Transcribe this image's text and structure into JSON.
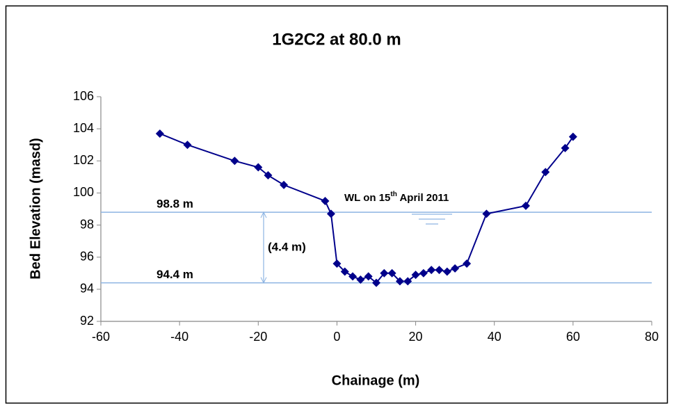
{
  "chart_data": {
    "type": "line",
    "title": "1G2C2 at 80.0 m",
    "x_label": "Chainage (m)",
    "y_label": "Bed Elevation (masd)",
    "xlim": [
      -60,
      80
    ],
    "xticks": [
      -60,
      -40,
      -20,
      0,
      20,
      40,
      60,
      80
    ],
    "ylim": [
      92,
      106
    ],
    "yticks": [
      92,
      94,
      96,
      98,
      100,
      102,
      104,
      106
    ],
    "grid": false,
    "series": [
      {
        "color": "#00008b",
        "x": [
          -45,
          -38,
          -26,
          -20,
          -17.5,
          -13.5,
          -3,
          -1.5,
          0,
          2,
          4,
          6,
          8,
          10,
          12,
          14,
          16,
          18,
          20,
          22,
          24,
          26,
          28,
          30,
          33,
          38,
          48,
          53,
          58,
          60
        ],
        "values": [
          103.7,
          103.0,
          102.0,
          101.6,
          101.1,
          100.5,
          99.5,
          98.7,
          95.6,
          95.1,
          94.8,
          94.6,
          94.8,
          94.4,
          95.0,
          95.0,
          94.5,
          94.5,
          94.9,
          95.0,
          95.2,
          95.2,
          95.1,
          95.3,
          95.6,
          98.7,
          99.2,
          101.3,
          102.8,
          103.5
        ]
      }
    ],
    "reference_lines": [
      {
        "value": 98.8,
        "label": "98.8 m",
        "color": "#8db4e2"
      },
      {
        "value": 94.4,
        "label": "94.4 m",
        "color": "#8db4e2"
      }
    ],
    "depth_label": "(4.4 m)",
    "water_level_label": {
      "before": "WL on 15",
      "sup": "th",
      "after": " April 2011"
    }
  }
}
